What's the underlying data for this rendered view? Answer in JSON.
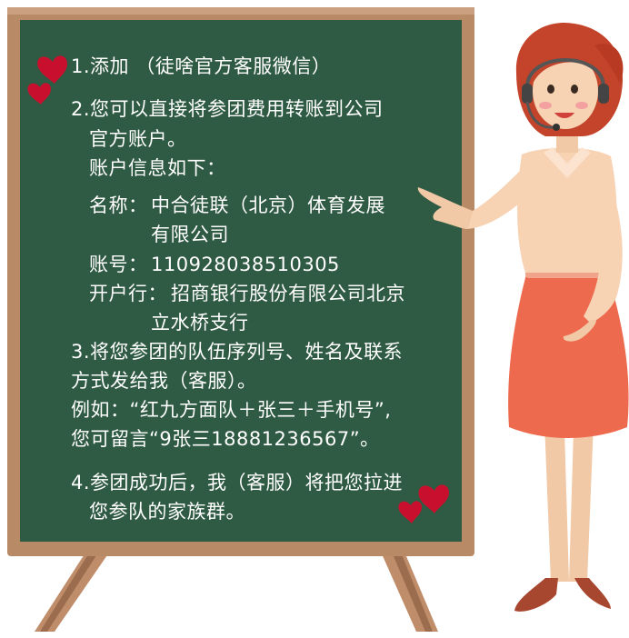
{
  "board": {
    "step1": "1.添加  （徒啥官方客服微信）",
    "step2_line1": "2.您可以直接将参团费用转账到公司",
    "step2_line2": "官方账户。",
    "step2_line3": "账户信息如下：",
    "account": {
      "name_label": "名称：",
      "name_line1": "中合徒联（北京）体育发展",
      "name_line2": "有限公司",
      "number_label": "账号：",
      "number_value": "110928038510305",
      "bank_label": "开户行：",
      "bank_line1": "招商银行股份有限公司北京",
      "bank_line2": "立水桥支行"
    },
    "step3_line1": "3.将您参团的队伍序列号、姓名及联系",
    "step3_line2": "方式发给我（客服）。",
    "step3_line3": "例如：“红九方面队＋张三＋手机号”,",
    "step3_line4": "您可留言“9张三18881236567”。",
    "step4_line1": "4.参团成功后，我（客服）将把您拉进",
    "step4_line2": "您参队的家族群。"
  },
  "colors": {
    "chalkboard": "#2f5a43",
    "frame": "#b98a66",
    "hearts": "#c8102e",
    "shirt": "#f7d3b4",
    "skirt": "#ee6a4e",
    "hair": "#c3442a"
  }
}
